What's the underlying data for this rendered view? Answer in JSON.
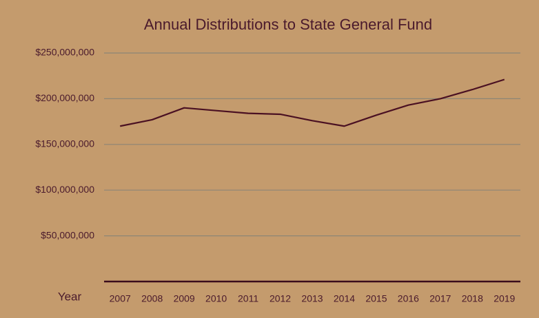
{
  "chart_data": {
    "type": "line",
    "title": "Annual Distributions to State General Fund",
    "x_label": "Year",
    "categories": [
      "2007",
      "2008",
      "2009",
      "2010",
      "2011",
      "2012",
      "2013",
      "2014",
      "2015",
      "2016",
      "2017",
      "2018",
      "2019"
    ],
    "series": [
      {
        "name": "Distributions",
        "color": "#4a1022",
        "values": [
          170000000,
          177000000,
          190000000,
          187000000,
          184000000,
          183000000,
          176000000,
          170000000,
          182000000,
          193000000,
          200000000,
          210000000,
          221000000
        ]
      }
    ],
    "ylim": [
      0,
      250000000
    ],
    "yticks": [
      {
        "value": 50000000,
        "label": "$50,000,000"
      },
      {
        "value": 100000000,
        "label": "$100,000,000"
      },
      {
        "value": 150000000,
        "label": "$150,000,000"
      },
      {
        "value": 200000000,
        "label": "$200,000,000"
      },
      {
        "value": 250000000,
        "label": "$250,000,000"
      }
    ],
    "grid": true
  }
}
